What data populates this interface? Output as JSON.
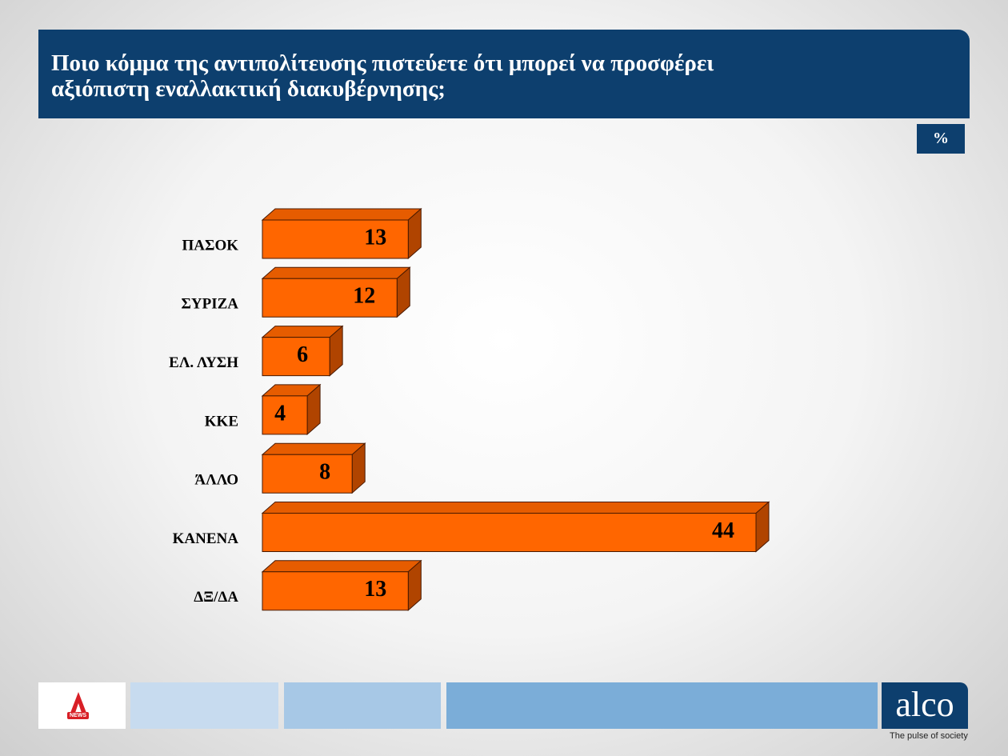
{
  "chart_data": {
    "type": "bar3d",
    "title": "Ποιο κόμμα της αντιπολίτευσης πιστεύετε ότι μπορεί να προσφέρει αξιόπιστη εναλλακτική διακυβέρνησης;",
    "unit": "%",
    "categories": [
      "ΠΑΣΟΚ",
      "ΣΥΡΙΖΑ",
      "ΕΛ. ΛΥΣΗ",
      "ΚΚΕ",
      "ΆΛΛΟ",
      "ΚΑΝΕΝΑ",
      "ΔΞ/ΔΑ"
    ],
    "values": [
      13,
      12,
      6,
      4,
      8,
      44,
      13
    ],
    "color": "#ff6600"
  },
  "footer": {
    "news": "NEWS",
    "brand": "alco",
    "tagline": "The pulse of society"
  }
}
